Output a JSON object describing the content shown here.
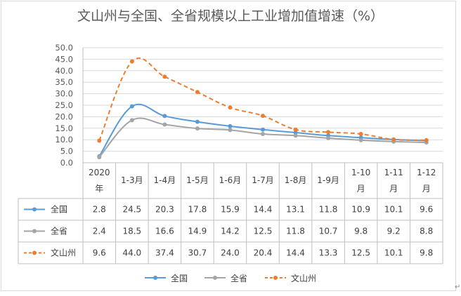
{
  "chart_data": {
    "type": "line",
    "title": "文山州与全国、全省规模以上工业增加值增速（%）",
    "categories": [
      "2020年",
      "1-3月",
      "1-4月",
      "1-5月",
      "1-6月",
      "1-7月",
      "1-8月",
      "1-9月",
      "1-10月",
      "1-11月",
      "1-12月"
    ],
    "y_ticks": [
      "0.0",
      "5.0",
      "10.0",
      "15.0",
      "20.0",
      "25.0",
      "30.0",
      "35.0",
      "40.0",
      "45.0",
      "50.0"
    ],
    "ylim": [
      0,
      50
    ],
    "grid": true,
    "legend": "bottom",
    "series": [
      {
        "name": "全国",
        "values": [
          2.8,
          24.5,
          20.3,
          17.8,
          15.9,
          14.4,
          13.1,
          11.8,
          10.9,
          10.1,
          9.6
        ],
        "labels": [
          "2.8",
          "24.5",
          "20.3",
          "17.8",
          "15.9",
          "14.4",
          "13.1",
          "11.8",
          "10.9",
          "10.1",
          "9.6"
        ],
        "color": "#5b9bd5",
        "style": "solid"
      },
      {
        "name": "全省",
        "values": [
          2.4,
          18.5,
          16.6,
          14.9,
          14.2,
          12.5,
          11.8,
          10.7,
          9.8,
          9.2,
          8.8
        ],
        "labels": [
          "2.4",
          "18.5",
          "16.6",
          "14.9",
          "14.2",
          "12.5",
          "11.8",
          "10.7",
          "9.8",
          "9.2",
          "8.8"
        ],
        "color": "#a5a5a5",
        "style": "solid"
      },
      {
        "name": "文山州",
        "values": [
          9.6,
          44.0,
          37.4,
          30.7,
          24.0,
          20.4,
          14.4,
          13.3,
          12.5,
          10.1,
          9.8
        ],
        "labels": [
          "9.6",
          "44.0",
          "37.4",
          "30.7",
          "24.0",
          "20.4",
          "14.4",
          "13.3",
          "12.5",
          "10.1",
          "9.8"
        ],
        "color": "#ed7d31",
        "style": "dashed"
      }
    ]
  },
  "corner_mark": "↵"
}
